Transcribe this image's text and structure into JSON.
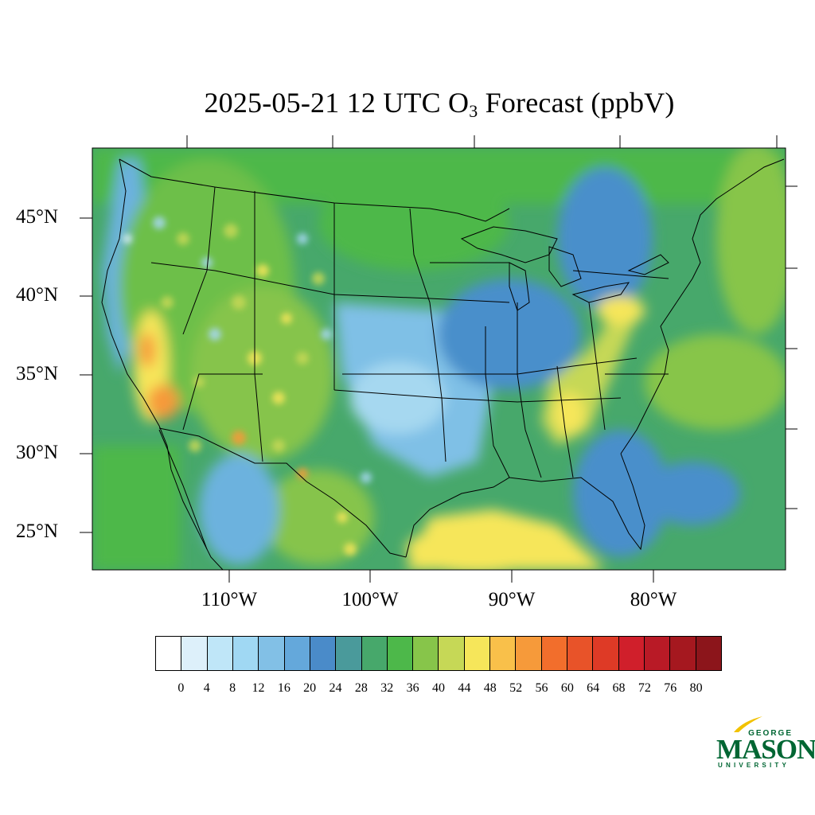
{
  "title": {
    "prefix": "2025-05-21 12 UTC O",
    "subscript": "3",
    "suffix": " Forecast (ppbV)"
  },
  "map": {
    "lat_labels": [
      "45°N",
      "40°N",
      "35°N",
      "30°N",
      "25°N"
    ],
    "lon_labels": [
      "110°W",
      "100°W",
      "90°W",
      "80°W"
    ],
    "colors": {
      "background_green": "#47A86B",
      "land_green": "#4DB84A",
      "blue": "#4A8FCB",
      "yellow": "#F6E65A",
      "orange": "#F69A3A",
      "light_blue": "#A6D8F0"
    }
  },
  "colorbar": {
    "levels": [
      "0",
      "4",
      "8",
      "12",
      "16",
      "20",
      "24",
      "28",
      "32",
      "36",
      "40",
      "44",
      "48",
      "52",
      "56",
      "60",
      "64",
      "68",
      "72",
      "76",
      "80"
    ],
    "colors": [
      "#FFFFFF",
      "#DDF0FA",
      "#BFE6F8",
      "#A0D8F3",
      "#82C0E6",
      "#64A8DB",
      "#4A8BC9",
      "#4A9A9B",
      "#47A86B",
      "#4DB84A",
      "#87C54A",
      "#C6D856",
      "#F6E65A",
      "#F9C04A",
      "#F69A3A",
      "#F26E2C",
      "#E85329",
      "#DE3A26",
      "#D01F2B",
      "#B91A26",
      "#A5181F",
      "#8C151B"
    ]
  },
  "logo": {
    "george": "GEORGE",
    "mason": "MASON",
    "university": "UNIVERSITY"
  }
}
